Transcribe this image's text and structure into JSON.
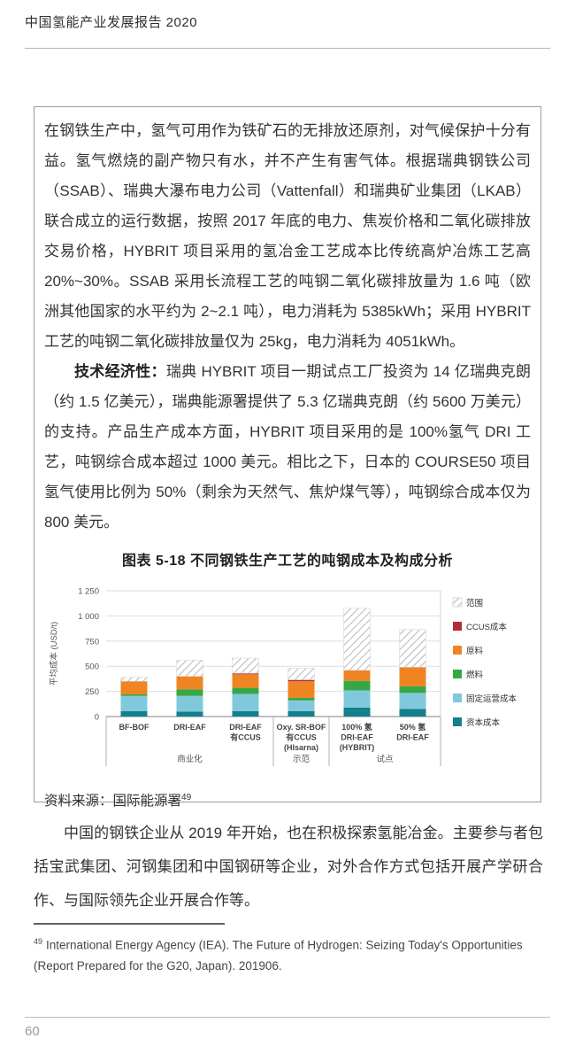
{
  "header": {
    "title": "中国氢能产业发展报告 2020"
  },
  "box": {
    "paragraph1": "在钢铁生产中，氢气可用作为铁矿石的无排放还原剂，对气候保护十分有益。氢气燃烧的副产物只有水，并不产生有害气体。根据瑞典钢铁公司（SSAB）、瑞典大瀑布电力公司（Vattenfall）和瑞典矿业集团（LKAB）联合成立的运行数据，按照 2017 年底的电力、焦炭价格和二氧化碳排放交易价格，HYBRIT 项目采用的氢冶金工艺成本比传统高炉冶炼工艺高 20%~30%。SSAB 采用长流程工艺的吨钢二氧化碳排放量为 1.6 吨（欧洲其他国家的水平约为 2~2.1 吨），电力消耗为 5385kWh；采用 HYBRIT 工艺的吨钢二氧化碳排放量仅为 25kg，电力消耗为 4051kWh。",
    "paragraph2_lead": "技术经济性：",
    "paragraph2_rest": "瑞典 HYBRIT 项目一期试点工厂投资为 14 亿瑞典克朗（约 1.5 亿美元），瑞典能源署提供了 5.3 亿瑞典克朗（约 5600 万美元）的支持。产品生产成本方面，HYBRIT 项目采用的是 100%氢气 DRI 工艺，吨钢综合成本超过 1000 美元。相比之下，日本的 COURSE50 项目氢气使用比例为 50%（剩余为天然气、焦炉煤气等），吨钢综合成本仅为 800 美元。",
    "figure_title": "图表 5-18 不同钢铁生产工艺的吨钢成本及构成分析",
    "source_label": "资料来源：国际能源署",
    "source_sup": "49"
  },
  "chart_data": {
    "type": "bar",
    "stacked": true,
    "title": "图表 5-18 不同钢铁生产工艺的吨钢成本及构成分析",
    "ylabel": "平均成本 (USD/t)",
    "ylim": [
      0,
      1250
    ],
    "ytick_values": [
      0,
      250,
      500,
      750,
      1000,
      1250
    ],
    "ytick_labels": [
      "0",
      "250",
      "500",
      "750",
      "1 000",
      "1 250"
    ],
    "grid": true,
    "legend_position": "right",
    "categories": [
      "BF-BOF",
      "DRI-EAF",
      "DRI-EAF\n有CCUS",
      "Oxy. SR-BOF\n有CCUS\n(HIsarna)",
      "100% 氢\nDRI-EAF\n(HYBRIT)",
      "50% 氢\nDRI-EAF"
    ],
    "groups": [
      {
        "label": "商业化",
        "from": 0,
        "to": 2
      },
      {
        "label": "示范",
        "from": 3,
        "to": 3
      },
      {
        "label": "试点",
        "from": 4,
        "to": 5
      }
    ],
    "series": [
      {
        "name": "资本成本",
        "color": "#147f8f",
        "values": [
          55,
          50,
          55,
          55,
          90,
          75
        ]
      },
      {
        "name": "固定运营成本",
        "color": "#82c8dc",
        "values": [
          150,
          155,
          170,
          105,
          170,
          160
        ]
      },
      {
        "name": "燃料",
        "color": "#35a845",
        "values": [
          15,
          65,
          60,
          25,
          95,
          65
        ]
      },
      {
        "name": "原料",
        "color": "#f08423",
        "values": [
          130,
          130,
          135,
          165,
          105,
          190
        ]
      },
      {
        "name": "CCUS成本",
        "color": "#b52b35",
        "values": [
          0,
          0,
          10,
          15,
          0,
          0
        ]
      }
    ],
    "range_name": "范围",
    "range_top": [
      390,
      560,
      580,
      480,
      1075,
      865
    ],
    "range_hatch_color": "#bcbcbc",
    "legend_order": [
      "范围",
      "CCUS成本",
      "原料",
      "燃料",
      "固定运营成本",
      "资本成本"
    ]
  },
  "body": {
    "paragraph": "中国的钢铁企业从 2019 年开始，也在积极探索氢能冶金。主要参与者包括宝武集团、河钢集团和中国钢研等企业，对外合作方式包括开展产学研合作、与国际领先企业开展合作等。"
  },
  "footnote": {
    "marker": "49",
    "text": "International Energy Agency (IEA). The Future of Hydrogen: Seizing Today's Opportunities (Report Prepared for the G20, Japan). 201906."
  },
  "footer": {
    "page_number": "60"
  }
}
